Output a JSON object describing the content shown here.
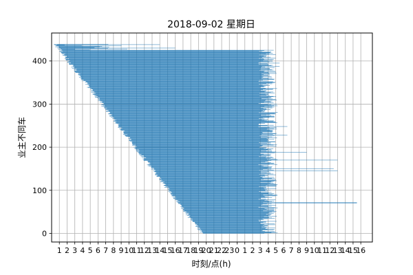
{
  "chart_data": {
    "type": "bar",
    "orientation": "horizontal",
    "title": "2018-09-02 星期日",
    "xlabel": "时刻/点(h)",
    "ylabel": "业主不同车",
    "x_tick_labels": [
      "1",
      "2",
      "3",
      "4",
      "5",
      "6",
      "7",
      "8",
      "9",
      "10",
      "11",
      "12",
      "13",
      "14",
      "15",
      "16",
      "17",
      "18",
      "19",
      "20",
      "21",
      "22",
      "23",
      "0",
      "1",
      "2",
      "3",
      "4",
      "5",
      "6",
      "7",
      "8",
      "9",
      "10",
      "11",
      "12",
      "13",
      "14",
      "15",
      "16"
    ],
    "y_ticks": [
      0,
      100,
      200,
      300,
      400
    ],
    "xlim": [
      0,
      41.5
    ],
    "ylim": [
      -20,
      465
    ],
    "bar_color": "#1f77b4",
    "grid": true,
    "n_bars": 440,
    "start_hour_at_index_0": 19.5,
    "start_hour_at_index_439": 0.5,
    "end_hour_typical": 28.0,
    "highlight_long_bars": [
      {
        "index": 70,
        "end": 39.5
      },
      {
        "index": 72,
        "end": 39.5
      },
      {
        "index": 145,
        "end": 37.0
      },
      {
        "index": 150,
        "end": 36.5
      },
      {
        "index": 170,
        "end": 37.0
      },
      {
        "index": 188,
        "end": 33.0
      },
      {
        "index": 228,
        "end": 30.5
      },
      {
        "index": 248,
        "end": 30.5
      },
      {
        "index": 388,
        "end": 29.5
      },
      {
        "index": 395,
        "end": 29.5
      },
      {
        "index": 430,
        "end": 16.0
      },
      {
        "index": 438,
        "end": 14.0
      }
    ]
  }
}
